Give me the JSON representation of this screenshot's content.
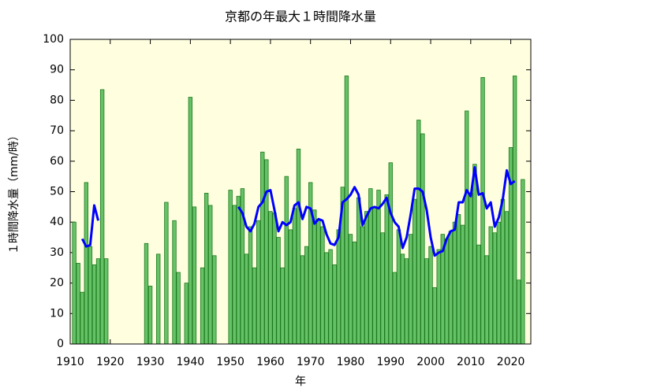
{
  "chart_data": {
    "type": "bar",
    "title": "京都の年最大１時間降水量",
    "xlabel": "年",
    "ylabel": "１時間降水量（mm/時）",
    "x": [
      1911,
      1912,
      1913,
      1914,
      1915,
      1916,
      1917,
      1918,
      1919,
      1920,
      1921,
      1922,
      1923,
      1924,
      1925,
      1926,
      1927,
      1928,
      1929,
      1930,
      1931,
      1932,
      1933,
      1934,
      1935,
      1936,
      1937,
      1938,
      1939,
      1940,
      1941,
      1942,
      1943,
      1944,
      1945,
      1946,
      1947,
      1948,
      1949,
      1950,
      1951,
      1952,
      1953,
      1954,
      1955,
      1956,
      1957,
      1958,
      1959,
      1960,
      1961,
      1962,
      1963,
      1964,
      1965,
      1966,
      1967,
      1968,
      1969,
      1970,
      1971,
      1972,
      1973,
      1974,
      1975,
      1976,
      1977,
      1978,
      1979,
      1980,
      1981,
      1982,
      1983,
      1984,
      1985,
      1986,
      1987,
      1988,
      1989,
      1990,
      1991,
      1992,
      1993,
      1994,
      1995,
      1996,
      1997,
      1998,
      1999,
      2000,
      2001,
      2002,
      2003,
      2004,
      2005,
      2006,
      2007,
      2008,
      2009,
      2010,
      2011,
      2012,
      2013,
      2014,
      2015,
      2016,
      2017,
      2018,
      2019,
      2020,
      2021,
      2022,
      2023
    ],
    "series": [
      {
        "type": "bar",
        "color": "#66c266",
        "values": [
          40,
          26.5,
          17,
          53,
          32,
          26,
          28,
          83.5,
          28,
          null,
          null,
          null,
          null,
          null,
          null,
          null,
          null,
          null,
          33,
          19,
          null,
          29.5,
          null,
          46.5,
          null,
          40.5,
          23.5,
          null,
          20,
          81,
          45,
          null,
          25,
          49.5,
          45.5,
          29,
          null,
          null,
          null,
          50.5,
          45.5,
          48.5,
          51,
          29.5,
          38.5,
          25,
          40.5,
          63,
          60.5,
          43.5,
          43,
          35,
          25,
          55,
          37.5,
          44.5,
          64,
          29,
          32,
          53,
          44,
          41,
          38.5,
          30,
          31,
          26,
          37.5,
          51.5,
          88,
          36,
          33.5,
          48,
          38.5,
          43.5,
          51,
          45,
          50.5,
          36.5,
          49,
          59.5,
          23.5,
          37.5,
          29.5,
          28,
          36,
          47.5,
          73.5,
          69,
          28,
          32,
          18.5,
          31,
          36,
          34.5,
          37,
          40,
          42.5,
          39,
          76.5,
          49.5,
          59,
          32.5,
          87.5,
          29,
          38.5,
          36.5,
          40,
          47.5,
          43.5,
          64.5,
          88,
          21,
          54
        ]
      },
      {
        "type": "line",
        "color": "#0000ff",
        "values": [
          null,
          null,
          34.5,
          32,
          32.5,
          45.5,
          40.5,
          null,
          null,
          null,
          null,
          null,
          null,
          null,
          null,
          null,
          null,
          null,
          null,
          null,
          null,
          null,
          null,
          null,
          null,
          null,
          null,
          null,
          null,
          null,
          null,
          null,
          null,
          null,
          null,
          null,
          null,
          null,
          null,
          null,
          null,
          45,
          43,
          38.5,
          37,
          39.5,
          45,
          46.5,
          50,
          50.5,
          44,
          37,
          40,
          39,
          40,
          45.5,
          46.5,
          41,
          45,
          44.5,
          39.5,
          41,
          40.5,
          36,
          33,
          32.5,
          35,
          46.5,
          47.5,
          49,
          51.5,
          49,
          39,
          42,
          44.5,
          45,
          44.5,
          46,
          48,
          43,
          40,
          38.5,
          31.5,
          35,
          42.5,
          51,
          51,
          50,
          44,
          35,
          29,
          30,
          30.5,
          34.5,
          37,
          37.5,
          46.5,
          46.5,
          50.5,
          48.5,
          58,
          49,
          49.5,
          44.5,
          46.5,
          38.5,
          41.5,
          47.5,
          57,
          52.5,
          53.5,
          null,
          null
        ]
      }
    ],
    "xlim": [
      1910,
      2025
    ],
    "xticks": [
      1910,
      1920,
      1930,
      1940,
      1950,
      1960,
      1970,
      1980,
      1990,
      2000,
      2010,
      2020
    ],
    "ylim": [
      0,
      100
    ],
    "yticks": [
      0,
      10,
      20,
      30,
      40,
      50,
      60,
      70,
      80,
      90,
      100
    ],
    "background": "#ffffe0"
  }
}
